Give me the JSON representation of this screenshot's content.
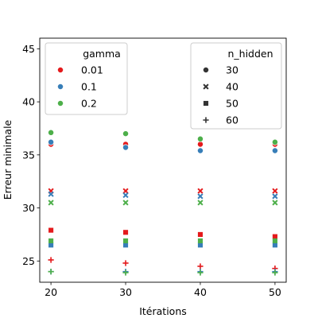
{
  "chart_data": {
    "type": "scatter",
    "title": "",
    "xlabel": "Itérations",
    "ylabel": "Erreur minimale",
    "xlim": [
      18.5,
      51.5
    ],
    "ylim": [
      23.0,
      46.0
    ],
    "xticks": [
      20,
      30,
      40,
      50
    ],
    "yticks": [
      25,
      30,
      35,
      40,
      45
    ],
    "grid": false,
    "x": [
      20,
      30,
      40,
      50
    ],
    "hue": {
      "title": "gamma",
      "placement": "top-left",
      "levels": [
        {
          "label": "0.01",
          "color": "#e41a1c"
        },
        {
          "label": "0.1",
          "color": "#377eb8"
        },
        {
          "label": "0.2",
          "color": "#4daf4a"
        }
      ]
    },
    "style": {
      "title": "n_hidden",
      "placement": "top-right",
      "levels": [
        {
          "label": "30",
          "marker": "circle"
        },
        {
          "label": "40",
          "marker": "x"
        },
        {
          "label": "50",
          "marker": "square"
        },
        {
          "label": "60",
          "marker": "plus"
        }
      ]
    },
    "series": [
      {
        "gamma": "0.01",
        "n_hidden": "30",
        "values": [
          36.0,
          36.0,
          36.0,
          36.0
        ]
      },
      {
        "gamma": "0.1",
        "n_hidden": "30",
        "values": [
          36.2,
          35.7,
          35.4,
          35.4
        ]
      },
      {
        "gamma": "0.2",
        "n_hidden": "30",
        "values": [
          37.1,
          37.0,
          36.5,
          36.2
        ]
      },
      {
        "gamma": "0.01",
        "n_hidden": "40",
        "values": [
          31.6,
          31.6,
          31.6,
          31.6
        ]
      },
      {
        "gamma": "0.1",
        "n_hidden": "40",
        "values": [
          31.3,
          31.2,
          31.1,
          31.1
        ]
      },
      {
        "gamma": "0.2",
        "n_hidden": "40",
        "values": [
          30.5,
          30.5,
          30.5,
          30.5
        ]
      },
      {
        "gamma": "0.01",
        "n_hidden": "50",
        "values": [
          27.9,
          27.7,
          27.5,
          27.3
        ]
      },
      {
        "gamma": "0.1",
        "n_hidden": "50",
        "values": [
          26.5,
          26.5,
          26.5,
          26.5
        ]
      },
      {
        "gamma": "0.2",
        "n_hidden": "50",
        "values": [
          26.9,
          26.9,
          26.9,
          26.9
        ]
      },
      {
        "gamma": "0.01",
        "n_hidden": "60",
        "values": [
          25.1,
          24.8,
          24.5,
          24.3
        ]
      },
      {
        "gamma": "0.1",
        "n_hidden": "60",
        "values": [
          24.0,
          24.0,
          24.0,
          24.0
        ]
      },
      {
        "gamma": "0.2",
        "n_hidden": "60",
        "values": [
          24.0,
          23.9,
          23.9,
          23.9
        ]
      }
    ]
  }
}
